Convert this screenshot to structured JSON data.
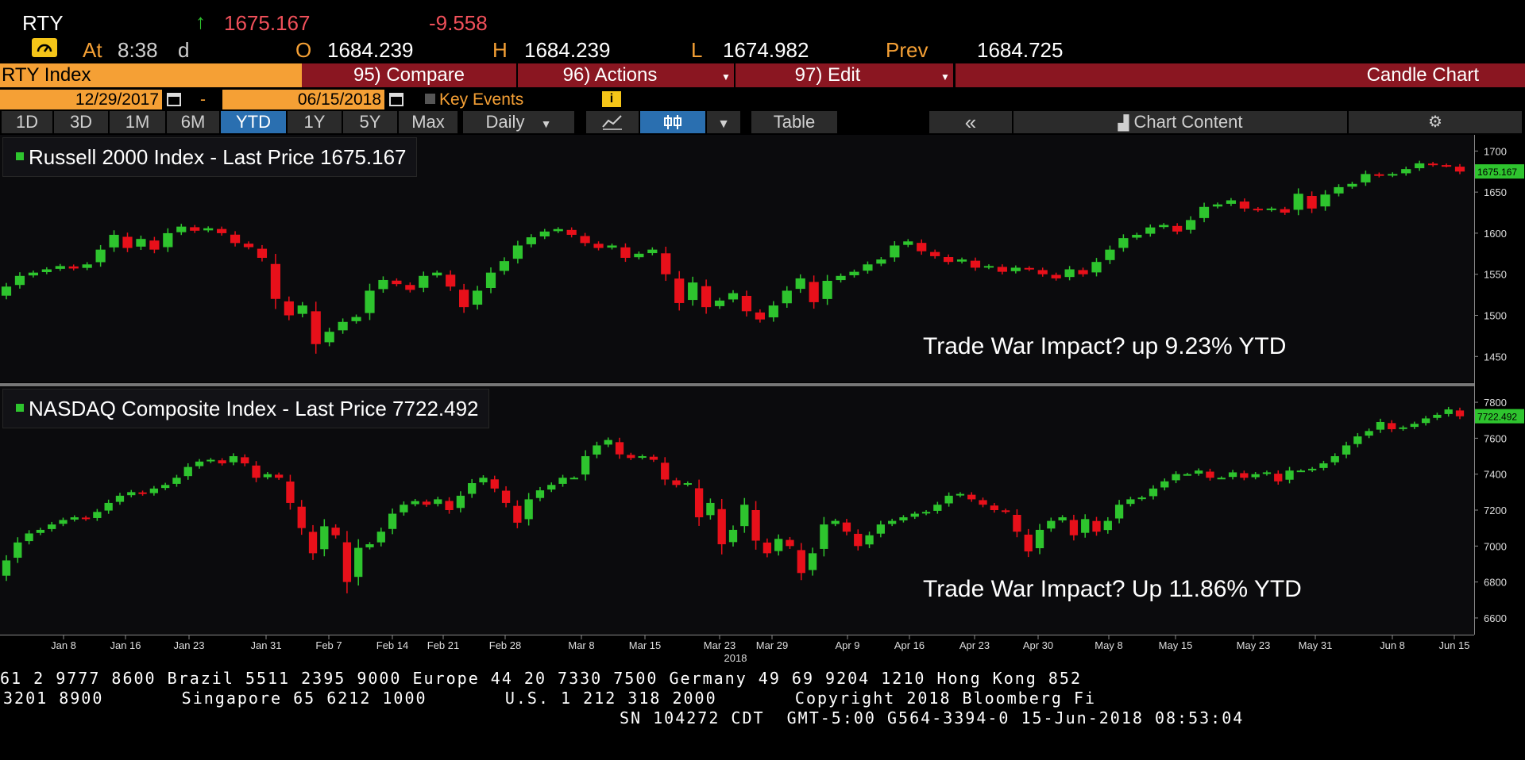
{
  "header": {
    "ticker": "RTY",
    "arrow": "↑",
    "last": "1675.167",
    "change": "-9.558",
    "at_label": "At",
    "time": "8:38",
    "time_suffix": "d",
    "open_label": "O",
    "open": "1684.239",
    "high_label": "H",
    "high": "1684.239",
    "low_label": "L",
    "low": "1674.982",
    "prev_label": "Prev",
    "prev": "1684.725"
  },
  "toolbar": {
    "security": "RTY Index",
    "compare": "95) Compare",
    "actions": "96) Actions",
    "edit": "97) Edit",
    "chart_type": "Candle Chart",
    "date_from": "12/29/2017",
    "date_sep": "-",
    "date_to": "06/15/2018",
    "key_events": "Key Events",
    "periods": [
      "1D",
      "3D",
      "1M",
      "6M",
      "YTD",
      "1Y",
      "5Y",
      "Max"
    ],
    "selected_period": "YTD",
    "frequency": "Daily",
    "table": "Table",
    "collapse": "«",
    "chart_content": "Chart Content"
  },
  "colors": {
    "up": "#2ec42e",
    "down": "#e8101a",
    "orange": "#f5a035",
    "maroon": "#8a1621",
    "selected": "#2a6fb0"
  },
  "chart_data": [
    {
      "type": "candlestick",
      "title": "Russell 2000 Index - Last Price 1675.167",
      "annotation": "Trade War Impact? up 9.23% YTD",
      "last_price_tag": "1675.167",
      "yticks": [
        "1700",
        "1650",
        "1600",
        "1550",
        "1500",
        "1450"
      ],
      "ylim": [
        1430,
        1710
      ],
      "close": [
        1535,
        1548,
        1552,
        1556,
        1560,
        1557,
        1562,
        1580,
        1598,
        1582,
        1593,
        1580,
        1600,
        1608,
        1603,
        1606,
        1600,
        1588,
        1583,
        1570,
        1520,
        1500,
        1512,
        1465,
        1480,
        1492,
        1498,
        1530,
        1543,
        1538,
        1531,
        1548,
        1552,
        1535,
        1510,
        1530,
        1552,
        1566,
        1585,
        1595,
        1602,
        1605,
        1598,
        1588,
        1582,
        1585,
        1570,
        1575,
        1580,
        1550,
        1515,
        1540,
        1510,
        1518,
        1527,
        1505,
        1495,
        1512,
        1530,
        1545,
        1516,
        1542,
        1548,
        1553,
        1562,
        1568,
        1585,
        1590,
        1578,
        1572,
        1565,
        1568,
        1558,
        1560,
        1553,
        1558,
        1556,
        1550,
        1545,
        1556,
        1550,
        1565,
        1580,
        1594,
        1598,
        1607,
        1610,
        1602,
        1616,
        1632,
        1635,
        1640,
        1630,
        1628,
        1630,
        1625,
        1648,
        1630,
        1647,
        1656,
        1660,
        1672,
        1670,
        1672,
        1678,
        1685,
        1683,
        1682,
        1675
      ],
      "x_ticks": [
        "Jan 8",
        "Jan 16",
        "Jan 23",
        "Jan 31",
        "Feb 7",
        "Feb 14",
        "Feb 21",
        "Feb 28",
        "Mar 8",
        "Mar 15",
        "Mar 23",
        "Mar 29",
        "Apr 9",
        "Apr 16",
        "Apr 23",
        "Apr 30",
        "May 8",
        "May 15",
        "May 23",
        "May 31",
        "Jun 8",
        "Jun 15"
      ]
    },
    {
      "type": "candlestick",
      "title": "NASDAQ Composite Index - Last Price 7722.492",
      "annotation": "Trade War Impact? Up 11.86% YTD",
      "last_price_tag": "7722.492",
      "yticks": [
        "7800",
        "7600",
        "7400",
        "7200",
        "7000",
        "6800",
        "6600"
      ],
      "ylim": [
        6560,
        7840
      ],
      "close": [
        6920,
        7020,
        7070,
        7090,
        7120,
        7145,
        7160,
        7150,
        7190,
        7240,
        7280,
        7300,
        7290,
        7320,
        7340,
        7380,
        7440,
        7470,
        7480,
        7460,
        7500,
        7460,
        7380,
        7400,
        7380,
        7240,
        7100,
        6960,
        7110,
        7060,
        6800,
        6990,
        7010,
        7080,
        7180,
        7230,
        7250,
        7230,
        7260,
        7200,
        7280,
        7350,
        7380,
        7320,
        7240,
        7130,
        7260,
        7310,
        7340,
        7380,
        7380,
        7500,
        7560,
        7590,
        7510,
        7490,
        7500,
        7480,
        7370,
        7340,
        7350,
        7160,
        7240,
        7010,
        7090,
        7230,
        7030,
        6960,
        7040,
        7000,
        6850,
        6960,
        7120,
        7140,
        7080,
        7000,
        7060,
        7120,
        7140,
        7160,
        7180,
        7190,
        7230,
        7280,
        7290,
        7260,
        7230,
        7200,
        7190,
        7080,
        6970,
        7090,
        7140,
        7160,
        7060,
        7150,
        7080,
        7140,
        7230,
        7260,
        7270,
        7320,
        7360,
        7400,
        7400,
        7420,
        7380,
        7380,
        7410,
        7380,
        7400,
        7410,
        7360,
        7420,
        7420,
        7430,
        7460,
        7500,
        7560,
        7610,
        7640,
        7690,
        7650,
        7660,
        7680,
        7710,
        7730,
        7760,
        7722
      ],
      "x_ticks": [
        "Jan 8",
        "Jan 16",
        "Jan 23",
        "Jan 31",
        "Feb 7",
        "Feb 14",
        "Feb 21",
        "Feb 28",
        "Mar 8",
        "Mar 15",
        "Mar 23",
        "Mar 29",
        "Apr 9",
        "Apr 16",
        "Apr 23",
        "Apr 30",
        "May 8",
        "May 15",
        "May 23",
        "May 31",
        "Jun 8",
        "Jun 15"
      ]
    }
  ],
  "axis": {
    "x_labels": [
      "Jan 8",
      "Jan 16",
      "Jan 23",
      "Jan 31",
      "Feb 7",
      "Feb 14",
      "Feb 21",
      "Feb 28",
      "Mar 8",
      "Mar 15",
      "Mar 23",
      "Mar 29",
      "Apr 9",
      "Apr 16",
      "Apr 23",
      "Apr 30",
      "May 8",
      "May 15",
      "May 23",
      "May 31",
      "Jun 8",
      "Jun 15"
    ],
    "year_label": "2018"
  },
  "footer": {
    "line1": "61 2 9777 8600 Brazil 5511 2395 9000 Europe 44 20 7330 7500 Germany 49 69 9204 1210 Hong Kong 852",
    "line2": "3201 8900       Singapore 65 6212 1000       U.S. 1 212 318 2000       Copyright 2018 Bloomberg Fi",
    "line3": "SN 104272 CDT  GMT-5:00 G564-3394-0 15-Jun-2018 08:53:04"
  }
}
